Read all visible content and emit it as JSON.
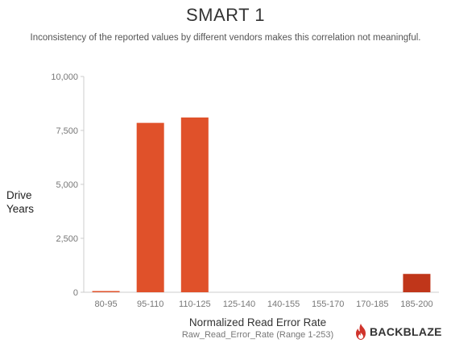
{
  "chart_data": {
    "type": "bar",
    "title": "SMART 1",
    "subtitle": "Inconsistency of the reported values by different vendors makes this correlation not meaningful.",
    "ylabel_lines": [
      "Drive",
      "Years"
    ],
    "xlabel": "Normalized Read Error Rate",
    "xsublabel": "Raw_Read_Error_Rate (Range 1-253)",
    "categories": [
      "80-95",
      "95-110",
      "110-125",
      "125-140",
      "140-155",
      "155-170",
      "170-185",
      "185-200"
    ],
    "values": [
      20,
      7850,
      8100,
      0,
      0,
      0,
      0,
      850
    ],
    "ylim": [
      0,
      10000
    ],
    "yticks": [
      0,
      2500,
      5000,
      7500,
      10000
    ],
    "ytick_labels": [
      "0",
      "2,500",
      "5,000",
      "7,500",
      "10,000"
    ],
    "grid": false,
    "bar_color": "#e0512a",
    "bar_color_last": "#c0361a"
  },
  "brand": {
    "name": "BACKBLAZE",
    "logo_color": "#d0342c"
  }
}
